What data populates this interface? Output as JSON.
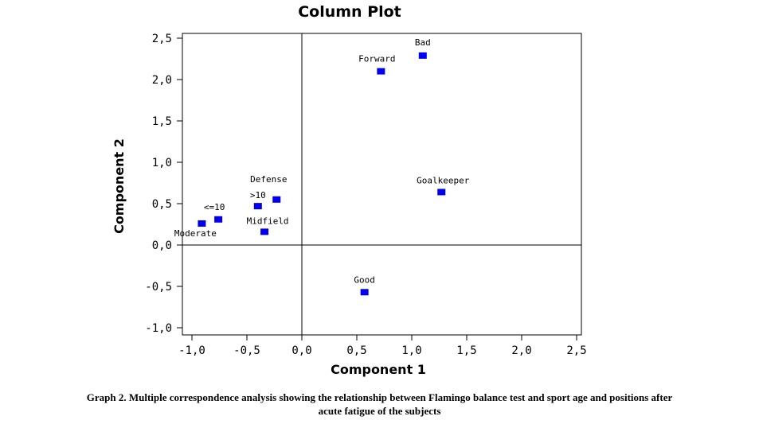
{
  "chart_data": {
    "type": "scatter",
    "title": "Column Plot",
    "xlabel": "Component 1",
    "ylabel": "Component 2",
    "xlim": [
      -1.0,
      2.5
    ],
    "ylim": [
      -1.0,
      2.5
    ],
    "xticks": [
      "-1,0",
      "-0,5",
      "0,0",
      "0,5",
      "1,0",
      "1,5",
      "2,0",
      "2,5"
    ],
    "yticks": [
      "2,5",
      "2,0",
      "1,5",
      "1,0",
      "0,5",
      "0,0",
      "-0,5",
      "-1,0"
    ],
    "reference_lines": {
      "x": 0,
      "y": 0
    },
    "marker_color": "#0000ee",
    "points": [
      {
        "label": "Bad",
        "x": 1.1,
        "y": 2.29
      },
      {
        "label": "Forward",
        "x": 0.72,
        "y": 2.1
      },
      {
        "label": "Goalkeeper",
        "x": 1.27,
        "y": 0.64
      },
      {
        "label": "Defense",
        "x": -0.23,
        "y": 0.55
      },
      {
        "label": ">10",
        "x": -0.4,
        "y": 0.47
      },
      {
        "label": "<=10",
        "x": -0.76,
        "y": 0.31
      },
      {
        "label": "Moderate",
        "x": -0.91,
        "y": 0.26
      },
      {
        "label": "Midfield",
        "x": -0.34,
        "y": 0.16
      },
      {
        "label": "Good",
        "x": 0.57,
        "y": -0.57
      }
    ]
  },
  "caption": {
    "line1": "Graph 2. Multiple correspondence analysis showing the relationship between Flamingo balance test and sport age and positions after",
    "line2": "acute fatigue of the subjects"
  }
}
